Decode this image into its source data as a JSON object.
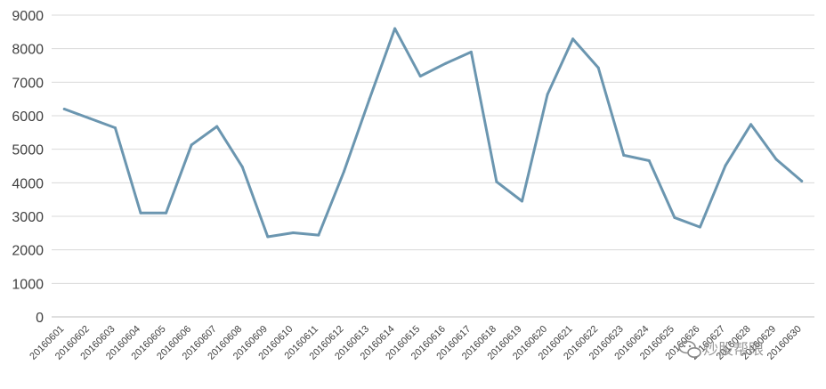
{
  "chart_data": {
    "type": "line",
    "categories": [
      "20160601",
      "20160602",
      "20160603",
      "20160604",
      "20160605",
      "20160606",
      "20160607",
      "20160608",
      "20160609",
      "20160610",
      "20160611",
      "20160612",
      "20160613",
      "20160614",
      "20160615",
      "20160616",
      "20160617",
      "20160618",
      "20160619",
      "20160620",
      "20160621",
      "20160622",
      "20160623",
      "20160624",
      "20160625",
      "20160626",
      "20160627",
      "20160628",
      "20160629",
      "20160630"
    ],
    "series": [
      {
        "values": [
          6200,
          5920,
          5640,
          3100,
          3100,
          5130,
          5680,
          4470,
          2390,
          2510,
          2440,
          4340,
          6500,
          8600,
          7180,
          7560,
          7900,
          4030,
          3450,
          6630,
          8290,
          7430,
          4820,
          4660,
          2960,
          2680,
          4510,
          5740,
          4700,
          4050
        ],
        "color": "#6b96b0"
      }
    ],
    "title": "",
    "xlabel": "",
    "ylabel": "",
    "ylim": [
      0,
      9000
    ],
    "yticks": [
      0,
      1000,
      2000,
      3000,
      4000,
      5000,
      6000,
      7000,
      8000,
      9000
    ],
    "grid": true,
    "legend": "none"
  },
  "watermark": {
    "text": "炒股帮眼",
    "icon": "chat-bubble-icon"
  }
}
